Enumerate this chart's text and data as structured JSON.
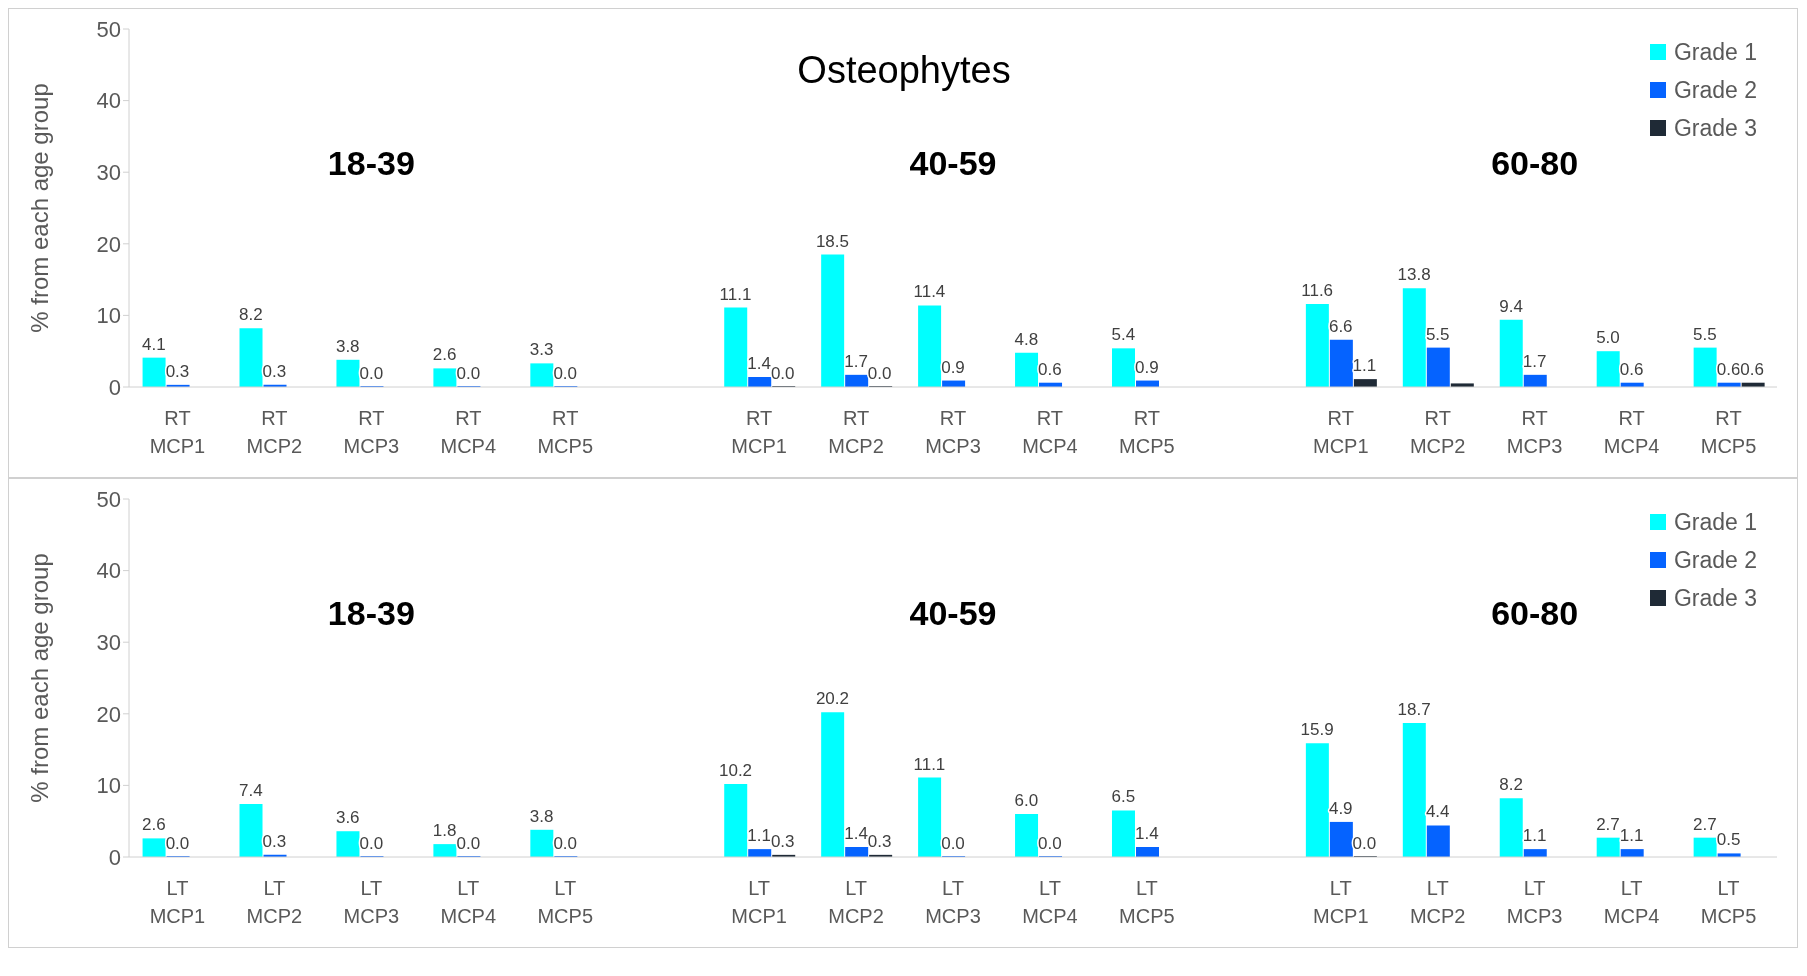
{
  "chart_data": [
    {
      "type": "bar",
      "title": "Osteophytes",
      "ylabel": "% from each age group",
      "annotations": [
        "18-39",
        "40-59",
        "60-80"
      ],
      "categories": [
        "RT MCP1",
        "RT MCP2",
        "RT MCP3",
        "RT MCP4",
        "RT MCP5",
        null,
        "RT MCP1",
        "RT MCP2",
        "RT MCP3",
        "RT MCP4",
        "RT MCP5",
        null,
        "RT MCP1",
        "RT MCP2",
        "RT MCP3",
        "RT MCP4",
        "RT MCP5"
      ],
      "series": [
        {
          "name": "Grade 1",
          "color": "#00ffff",
          "values": [
            4.1,
            8.2,
            3.8,
            2.6,
            3.3,
            null,
            11.1,
            18.5,
            11.4,
            4.8,
            5.4,
            null,
            11.6,
            13.8,
            9.4,
            5.0,
            5.5
          ],
          "value_labels": [
            "4.1",
            "8.2",
            "3.8",
            "2.6",
            "3.3",
            null,
            "11.1",
            "18.5",
            "11.4",
            "4.8",
            "5.4",
            null,
            "11.6",
            "13.8",
            "9.4",
            "5.0",
            "5.5"
          ]
        },
        {
          "name": "Grade 2",
          "color": "#0563ff",
          "values": [
            0.3,
            0.3,
            0.0,
            0.0,
            0.0,
            null,
            1.4,
            1.7,
            0.9,
            0.6,
            0.9,
            null,
            6.6,
            5.5,
            1.7,
            0.6,
            0.6
          ],
          "value_labels": [
            "0.3",
            "0.3",
            "0.0",
            "0.0",
            "0.0",
            null,
            "1.4",
            "1.7",
            "0.9",
            "0.6",
            "0.9",
            null,
            "6.6",
            "5.5",
            "1.7",
            "0.6",
            "0.6"
          ]
        },
        {
          "name": "Grade 3",
          "color": "#1f2a36",
          "values": [
            0,
            0,
            0,
            0,
            0,
            null,
            0.0,
            0.0,
            0,
            0,
            0,
            null,
            1.1,
            0.5,
            0,
            0,
            0.6
          ],
          "value_labels": [
            null,
            null,
            null,
            null,
            null,
            null,
            "0.0",
            "0.0",
            null,
            null,
            null,
            null,
            "1.1",
            null,
            null,
            null,
            "0.6"
          ]
        }
      ],
      "ylim": [
        0,
        50
      ],
      "yticks": [
        0,
        10,
        20,
        30,
        40,
        50
      ],
      "legend": "top right"
    },
    {
      "type": "bar",
      "ylabel": "% from each age group",
      "annotations": [
        "18-39",
        "40-59",
        "60-80"
      ],
      "categories": [
        "LT MCP1",
        "LT MCP2",
        "LT MCP3",
        "LT MCP4",
        "LT MCP5",
        null,
        "LT MCP1",
        "LT MCP2",
        "LT MCP3",
        "LT MCP4",
        "LT MCP5",
        null,
        "LT MCP1",
        "LT MCP2",
        "LT MCP3",
        "LT MCP4",
        "LT MCP5"
      ],
      "series": [
        {
          "name": "Grade 1",
          "color": "#00ffff",
          "values": [
            2.6,
            7.4,
            3.6,
            1.8,
            3.8,
            null,
            10.2,
            20.2,
            11.1,
            6.0,
            6.5,
            null,
            15.9,
            18.7,
            8.2,
            2.7,
            2.7
          ],
          "value_labels": [
            "2.6",
            "7.4",
            "3.6",
            "1.8",
            "3.8",
            null,
            "10.2",
            "20.2",
            "11.1",
            "6.0",
            "6.5",
            null,
            "15.9",
            "18.7",
            "8.2",
            "2.7",
            "2.7"
          ]
        },
        {
          "name": "Grade 2",
          "color": "#0563ff",
          "values": [
            0.0,
            0.3,
            0.0,
            0.0,
            0.0,
            null,
            1.1,
            1.4,
            0.0,
            0.0,
            1.4,
            null,
            4.9,
            4.4,
            1.1,
            1.1,
            0.5
          ],
          "value_labels": [
            "0.0",
            "0.3",
            "0.0",
            "0.0",
            "0.0",
            null,
            "1.1",
            "1.4",
            "0.0",
            "0.0",
            "1.4",
            null,
            "4.9",
            "4.4",
            "1.1",
            "1.1",
            "0.5"
          ]
        },
        {
          "name": "Grade 3",
          "color": "#1f2a36",
          "values": [
            0,
            0,
            0,
            0,
            0,
            null,
            0.3,
            0.3,
            0,
            0,
            0,
            null,
            0.0,
            0,
            0,
            0,
            0
          ],
          "value_labels": [
            null,
            null,
            null,
            null,
            null,
            null,
            "0.3",
            "0.3",
            null,
            null,
            null,
            null,
            "0.0",
            null,
            null,
            null,
            null
          ]
        }
      ],
      "ylim": [
        0,
        50
      ],
      "yticks": [
        0,
        10,
        20,
        30,
        40,
        50
      ],
      "legend": "top right"
    }
  ]
}
